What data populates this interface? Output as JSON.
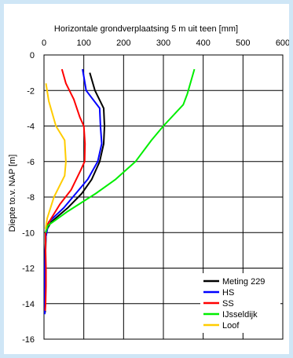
{
  "chart_data": {
    "type": "line",
    "title": "",
    "xlabel": "Horizontale grondverplaatsing 5 m uit teen [mm]",
    "ylabel": "Diepte to.v. NAP [m]",
    "xlim": [
      0,
      600
    ],
    "ylim": [
      -16,
      0
    ],
    "x_ticks": [
      0,
      100,
      200,
      300,
      400,
      500,
      600
    ],
    "y_ticks": [
      0,
      -2,
      -4,
      -6,
      -8,
      -10,
      -12,
      -14,
      -16
    ],
    "x_axis_position": "top",
    "grid": true,
    "legend_position": "bottom-right",
    "series": [
      {
        "name": "Meting 229",
        "color": "#000000",
        "points": [
          [
            115,
            -1.0
          ],
          [
            128,
            -2.0
          ],
          [
            150,
            -3.0
          ],
          [
            152,
            -4.0
          ],
          [
            150,
            -5.0
          ],
          [
            140,
            -6.0
          ],
          [
            120,
            -7.0
          ],
          [
            95,
            -7.8
          ],
          [
            60,
            -8.6
          ],
          [
            18,
            -9.4
          ],
          [
            8,
            -9.8
          ],
          [
            5,
            -10.2
          ],
          [
            4,
            -11.0
          ],
          [
            3,
            -12.0
          ],
          [
            3,
            -13.0
          ],
          [
            3,
            -14.0
          ],
          [
            3,
            -14.5
          ]
        ]
      },
      {
        "name": "HS",
        "color": "#0000ff",
        "points": [
          [
            97,
            -0.8
          ],
          [
            106,
            -2.0
          ],
          [
            140,
            -3.0
          ],
          [
            142,
            -4.0
          ],
          [
            145,
            -5.0
          ],
          [
            135,
            -6.0
          ],
          [
            110,
            -7.0
          ],
          [
            80,
            -7.8
          ],
          [
            50,
            -8.6
          ],
          [
            12,
            -9.4
          ],
          [
            5,
            -10.2
          ],
          [
            3,
            -11.0
          ],
          [
            2,
            -12.0
          ],
          [
            2,
            -13.0
          ],
          [
            2,
            -14.0
          ],
          [
            2,
            -14.6
          ]
        ]
      },
      {
        "name": "SS",
        "color": "#ff0000",
        "points": [
          [
            45,
            -0.8
          ],
          [
            55,
            -1.6
          ],
          [
            75,
            -2.5
          ],
          [
            90,
            -3.5
          ],
          [
            100,
            -4.0
          ],
          [
            103,
            -5.0
          ],
          [
            102,
            -6.0
          ],
          [
            92,
            -6.5
          ],
          [
            68,
            -7.6
          ],
          [
            40,
            -8.4
          ],
          [
            10,
            -9.5
          ],
          [
            4,
            -10.0
          ],
          [
            4,
            -11.0
          ],
          [
            5,
            -12.0
          ],
          [
            5,
            -13.0
          ],
          [
            4,
            -14.0
          ],
          [
            3,
            -14.4
          ]
        ]
      },
      {
        "name": "IJsseldijk",
        "color": "#00ee00",
        "points": [
          [
            378,
            -0.8
          ],
          [
            360,
            -2.2
          ],
          [
            350,
            -2.8
          ],
          [
            300,
            -4.0
          ],
          [
            270,
            -4.8
          ],
          [
            230,
            -6.0
          ],
          [
            180,
            -7.0
          ],
          [
            130,
            -7.8
          ],
          [
            60,
            -8.8
          ],
          [
            10,
            -9.6
          ],
          [
            4,
            -10.0
          ]
        ]
      },
      {
        "name": "Loof",
        "color": "#ffcc00",
        "points": [
          [
            5,
            -1.6
          ],
          [
            12,
            -2.6
          ],
          [
            30,
            -4.0
          ],
          [
            52,
            -4.8
          ],
          [
            55,
            -6.0
          ],
          [
            52,
            -6.8
          ],
          [
            25,
            -8.0
          ],
          [
            8,
            -9.2
          ],
          [
            4,
            -9.8
          ]
        ]
      }
    ]
  }
}
